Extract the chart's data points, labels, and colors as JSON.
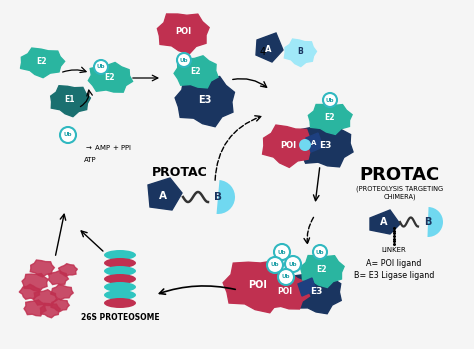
{
  "bg_color": "#f5f5f5",
  "teal_dark": "#1a7070",
  "teal_mid": "#2ab5a0",
  "teal_light": "#30c5c0",
  "sky_blue": "#70d8f0",
  "sky_blue2": "#a0e8f8",
  "navy": "#1a3560",
  "navy2": "#1e4080",
  "crimson": "#c03050",
  "title": "PROTAC",
  "subtitle": "(PROTEOLYSIS TARGETING\nCHIMERA)",
  "linker_label": "LINKER",
  "legend_a": "A= POI ligand",
  "legend_b": "B= E3 Ligase ligand",
  "protac_label": "PROTAC",
  "proteosome_label": "26S PROTEOSOME",
  "atp_label": "ATP",
  "amp_ppi_label": "AMP + PPI",
  "ub_label": "Ub",
  "ub_ring_color": "#30b8c0",
  "ub_text_color": "#20a0a8"
}
